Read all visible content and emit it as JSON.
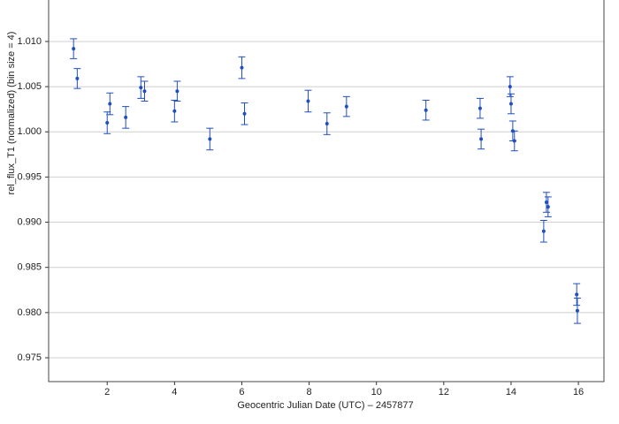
{
  "chart_data": {
    "type": "scatter",
    "xlabel": "Geocentric Julian Date (UTC) – 2457877",
    "ylabel": "rel_flux_T1 (normalized) (bin size = 4)",
    "color": "#1f4fbf",
    "grid": true,
    "xlim": [
      0.26,
      16.76
    ],
    "ylim": [
      0.97236,
      1.01459
    ],
    "xticks": [
      2,
      4,
      6,
      8,
      10,
      12,
      14,
      16
    ],
    "yticks": [
      {
        "value": 0.975,
        "label": "0.975"
      },
      {
        "value": 0.98,
        "label": "0.980"
      },
      {
        "value": 0.985,
        "label": "0.985"
      },
      {
        "value": 0.99,
        "label": "0.990"
      },
      {
        "value": 0.995,
        "label": "0.995"
      },
      {
        "value": 1,
        "label": "1.000"
      },
      {
        "value": 1.005,
        "label": "1.005"
      },
      {
        "value": 1.01,
        "label": "1.010"
      }
    ],
    "x": [
      1.0,
      1.11,
      2.0,
      2.08,
      2.55,
      3.0,
      3.11,
      4.0,
      4.08,
      5.05,
      6.0,
      6.08,
      7.97,
      8.53,
      9.11,
      11.47,
      13.08,
      13.11,
      13.97,
      14.0,
      14.05,
      14.1,
      14.97,
      15.05,
      15.1,
      15.95,
      15.97
    ],
    "values": [
      1.0092,
      1.0059,
      1.001,
      1.0031,
      1.0016,
      1.0049,
      1.0045,
      1.0023,
      1.0045,
      0.9992,
      1.0071,
      1.002,
      1.0034,
      1.0009,
      1.0028,
      1.0024,
      1.0026,
      0.9992,
      1.005,
      1.0031,
      1.0001,
      0.999,
      0.989,
      0.9922,
      0.9917,
      0.982,
      0.9802
    ],
    "errors": [
      0.0011,
      0.0011,
      0.0012,
      0.0012,
      0.0012,
      0.0012,
      0.0011,
      0.0012,
      0.0011,
      0.0012,
      0.0012,
      0.0012,
      0.0012,
      0.0012,
      0.0011,
      0.0011,
      0.0011,
      0.0011,
      0.0011,
      0.0011,
      0.0011,
      0.0011,
      0.0012,
      0.0011,
      0.0011,
      0.0012,
      0.0014
    ]
  }
}
